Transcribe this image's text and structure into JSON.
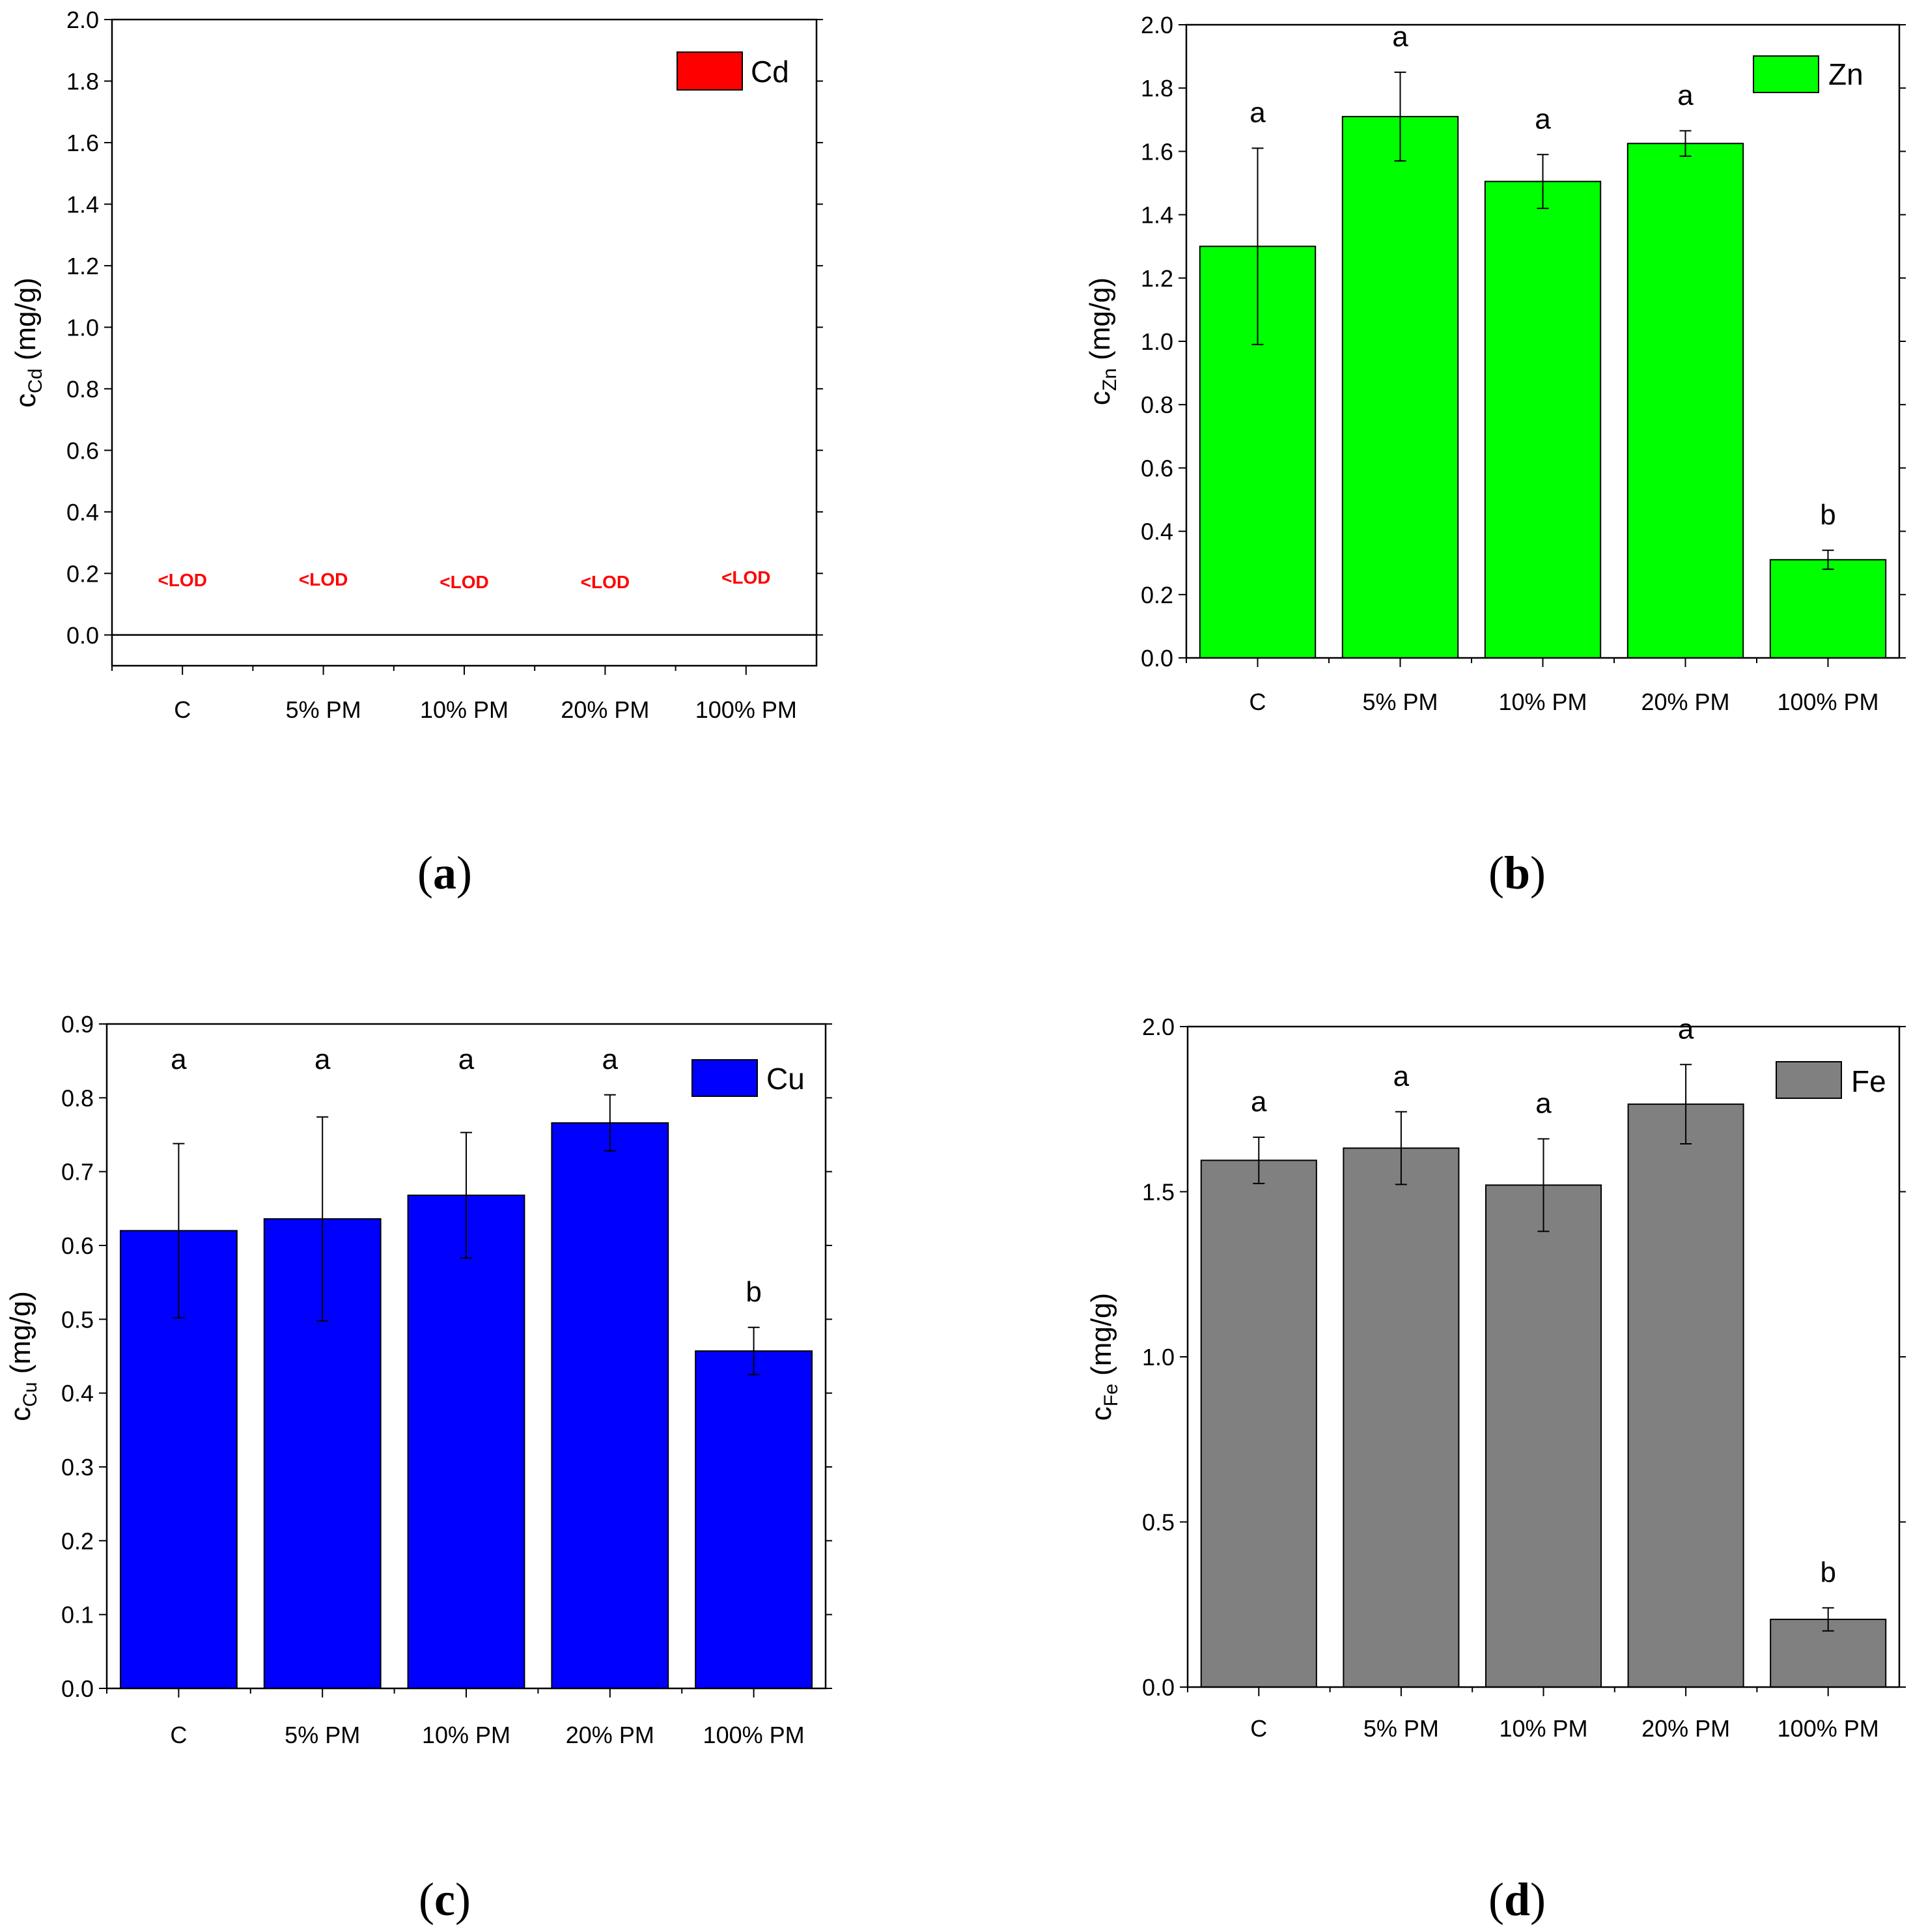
{
  "chart_data": [
    {
      "type": "bar",
      "panel": "a",
      "caption": {
        "open": "(",
        "letter": "a",
        "close": ")"
      },
      "ylabel": {
        "main": "c",
        "sub": "Cd",
        "unit": " (mg/g)"
      },
      "legend": "Cd",
      "color": "#ff0000",
      "ylim": [
        -0.1,
        2.0
      ],
      "yticks": [
        0.0,
        0.2,
        0.4,
        0.6,
        0.8,
        1.0,
        1.2,
        1.4,
        1.6,
        1.8,
        2.0
      ],
      "ytick_labels": [
        "0.0",
        "0.2",
        "0.4",
        "0.6",
        "0.8",
        "1.0",
        "1.2",
        "1.4",
        "1.6",
        "1.8",
        "2.0"
      ],
      "zero_line": true,
      "categories": [
        "C",
        "5% PM",
        "10% PM",
        "20% PM",
        "100% PM"
      ],
      "values": [
        null,
        null,
        null,
        null,
        null
      ],
      "annotations": [
        "<LOD",
        "<LOD",
        "<LOD",
        "<LOD",
        "<LOD"
      ],
      "letters": []
    },
    {
      "type": "bar",
      "panel": "b",
      "caption": {
        "open": "(",
        "letter": "b",
        "close": ")"
      },
      "ylabel": {
        "main": "c",
        "sub": "Zn",
        "unit": " (mg/g)"
      },
      "legend": "Zn",
      "color": "#00ff00",
      "ylim": [
        0.0,
        2.0
      ],
      "yticks": [
        0.0,
        0.2,
        0.4,
        0.6,
        0.8,
        1.0,
        1.2,
        1.4,
        1.6,
        1.8,
        2.0
      ],
      "ytick_labels": [
        "0.0",
        "0.2",
        "0.4",
        "0.6",
        "0.8",
        "1.0",
        "1.2",
        "1.4",
        "1.6",
        "1.8",
        "2.0"
      ],
      "zero_line": false,
      "categories": [
        "C",
        "5% PM",
        "10% PM",
        "20% PM",
        "100% PM"
      ],
      "values": [
        1.3,
        1.71,
        1.505,
        1.625,
        0.31
      ],
      "errors": [
        0.31,
        0.14,
        0.085,
        0.04,
        0.03
      ],
      "letters": [
        "a",
        "a",
        "a",
        "a",
        "b"
      ]
    },
    {
      "type": "bar",
      "panel": "c",
      "caption": {
        "open": "(",
        "letter": "c",
        "close": ")"
      },
      "ylabel": {
        "main": "c",
        "sub": "Cu",
        "unit": " (mg/g)"
      },
      "legend": "Cu",
      "color": "#0000ff",
      "ylim": [
        0.0,
        0.9
      ],
      "yticks": [
        0.0,
        0.1,
        0.2,
        0.3,
        0.4,
        0.5,
        0.6,
        0.7,
        0.8,
        0.9
      ],
      "ytick_labels": [
        "0.0",
        "0.1",
        "0.2",
        "0.3",
        "0.4",
        "0.5",
        "0.6",
        "0.7",
        "0.8",
        "0.9"
      ],
      "zero_line": false,
      "categories": [
        "C",
        "5% PM",
        "10% PM",
        "20% PM",
        "100% PM"
      ],
      "values": [
        0.62,
        0.636,
        0.668,
        0.766,
        0.457
      ],
      "errors": [
        0.118,
        0.138,
        0.085,
        0.038,
        0.032
      ],
      "letters": [
        "a",
        "a",
        "a",
        "a",
        "b"
      ]
    },
    {
      "type": "bar",
      "panel": "d",
      "caption": {
        "open": "(",
        "letter": "d",
        "close": ")"
      },
      "ylabel": {
        "main": "c",
        "sub": "Fe",
        "unit": " (mg/g)"
      },
      "legend": "Fe",
      "color": "#808080",
      "ylim": [
        0.0,
        2.0
      ],
      "yticks": [
        0.0,
        0.5,
        1.0,
        1.5,
        2.0
      ],
      "ytick_labels": [
        "0.0",
        "0.5",
        "1.0",
        "1.5",
        "2.0"
      ],
      "zero_line": false,
      "categories": [
        "C",
        "5% PM",
        "10% PM",
        "20% PM",
        "100% PM"
      ],
      "values": [
        1.595,
        1.632,
        1.52,
        1.765,
        0.205
      ],
      "errors": [
        0.07,
        0.11,
        0.14,
        0.12,
        0.035
      ],
      "letters": [
        "a",
        "a",
        "a",
        "a",
        "b"
      ]
    }
  ]
}
